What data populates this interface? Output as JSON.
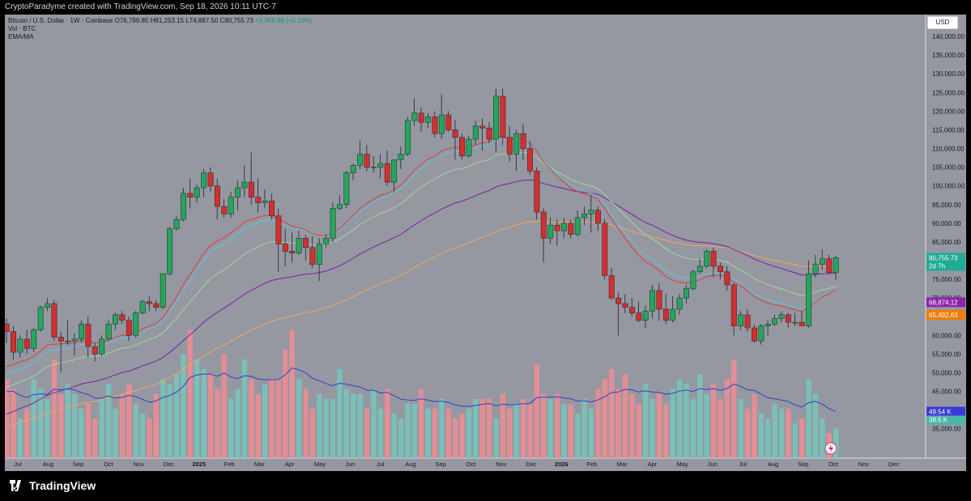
{
  "header": {
    "title": "CryptoParadyme created with TradingView.com, Sep 18, 2026 10:11 UTC-7"
  },
  "legend": {
    "symbol": "Bitcoin / U.S. Dollar · 1W · Coinbase",
    "ohlc": "O76,799.85 H81,253.15 L74,887.50 C80,755.73",
    "change": "+3,955.88 (+5.15%)",
    "vol_label": "Vol · BTC",
    "ema_label": "EMA/MA"
  },
  "currency_button": "USD",
  "brand": "TradingView",
  "icons": {
    "logo": "tradingview-logo-icon",
    "replay": "lightning-replay-icon"
  },
  "colors": {
    "background": "#9598a1",
    "up": "#089981",
    "down": "#f23645",
    "ema_red": "#e53935",
    "ema_cyan": "#5ec5e0",
    "ma_green": "#9ed99e",
    "ma_purple": "#7b1fa2",
    "ma_orange": "#f5a55a",
    "vol_ma_blue": "#2f3ec9",
    "price_label_green": "#22ab94",
    "price_label_purple": "#8e24aa",
    "price_label_orange": "#f57c00",
    "vol_label_blue": "#3a3ad8"
  },
  "price_labels": {
    "last_price": "80,755.73",
    "countdown": "2d 7h",
    "ma_purple": "68,874.12",
    "ma_orange": "65,492.63",
    "vol_ma": "49.54 K",
    "vol": "38.5 K"
  },
  "chart_data": {
    "type": "candlestick",
    "y_axis": {
      "min": 28000,
      "max": 145000,
      "ticks": [
        "140,000.00",
        "135,000.00",
        "130,000.00",
        "125,000.00",
        "120,000.00",
        "115,000.00",
        "110,000.00",
        "105,000.00",
        "100,000.00",
        "95,000.00",
        "90,000.00",
        "85,000.00",
        "80,000.00",
        "75,000.00",
        "70,000.00",
        "65,000.00",
        "60,000.00",
        "55,000.00",
        "50,000.00",
        "45,000.00",
        "40,000.00",
        "35,000.00"
      ],
      "tick_values": [
        140000,
        135000,
        130000,
        125000,
        120000,
        115000,
        110000,
        105000,
        100000,
        95000,
        90000,
        85000,
        80000,
        75000,
        70000,
        65000,
        60000,
        55000,
        50000,
        45000,
        40000,
        35000
      ]
    },
    "x_axis": {
      "labels": [
        "Jul",
        "Aug",
        "Sep",
        "Oct",
        "Nov",
        "Dec",
        "2025",
        "Feb",
        "Mar",
        "Apr",
        "May",
        "Jun",
        "Jul",
        "Aug",
        "Sep",
        "Oct",
        "Nov",
        "Dec",
        "2026",
        "Feb",
        "Mar",
        "Apr",
        "May",
        "Jun",
        "Jul",
        "Aug",
        "Sep",
        "Oct",
        "Nov",
        "Dec"
      ],
      "bold": [
        "2025",
        "2026"
      ]
    },
    "candles": [
      [
        63000,
        64500,
        58000,
        61000
      ],
      [
        61000,
        62500,
        53500,
        55500
      ],
      [
        55500,
        60000,
        54000,
        59000
      ],
      [
        59000,
        61500,
        55000,
        56500
      ],
      [
        56500,
        62000,
        55500,
        61500
      ],
      [
        61500,
        68000,
        61000,
        67500
      ],
      [
        67500,
        70000,
        66500,
        68500
      ],
      [
        68500,
        69500,
        58500,
        59500
      ],
      [
        59500,
        61000,
        50000,
        58500
      ],
      [
        58500,
        64000,
        57500,
        58500
      ],
      [
        58500,
        60500,
        54500,
        59000
      ],
      [
        59000,
        64000,
        58000,
        63000
      ],
      [
        63000,
        65000,
        54000,
        57000
      ],
      [
        57000,
        58000,
        53000,
        55000
      ],
      [
        55000,
        60000,
        54500,
        59000
      ],
      [
        59000,
        64000,
        58500,
        63000
      ],
      [
        63000,
        66000,
        61500,
        65500
      ],
      [
        65500,
        66500,
        63000,
        64000
      ],
      [
        64000,
        65000,
        58500,
        60000
      ],
      [
        60000,
        66500,
        59500,
        66000
      ],
      [
        66000,
        69500,
        65500,
        69000
      ],
      [
        69000,
        70500,
        66500,
        68500
      ],
      [
        68500,
        69500,
        66500,
        67500
      ],
      [
        67500,
        76500,
        67000,
        76500
      ],
      [
        76500,
        89000,
        76000,
        88500
      ],
      [
        88500,
        92000,
        88000,
        91000
      ],
      [
        91000,
        99500,
        90500,
        98000
      ],
      [
        98000,
        102000,
        94000,
        97000
      ],
      [
        97000,
        100500,
        95500,
        99500
      ],
      [
        99500,
        104500,
        97000,
        103500
      ],
      [
        103500,
        105000,
        98500,
        100000
      ],
      [
        100000,
        102000,
        91000,
        94500
      ],
      [
        94500,
        96500,
        91500,
        92500
      ],
      [
        92500,
        98500,
        91500,
        97000
      ],
      [
        97000,
        101500,
        93500,
        99500
      ],
      [
        99500,
        105500,
        97000,
        101000
      ],
      [
        101000,
        109000,
        95000,
        97000
      ],
      [
        97000,
        102000,
        93000,
        95500
      ],
      [
        95500,
        99000,
        94000,
        96000
      ],
      [
        96000,
        98000,
        91000,
        92000
      ],
      [
        92000,
        94000,
        77000,
        84500
      ],
      [
        84500,
        88500,
        78500,
        82500
      ],
      [
        82500,
        87500,
        79500,
        82000
      ],
      [
        82000,
        88000,
        81500,
        86000
      ],
      [
        86000,
        87000,
        80000,
        83500
      ],
      [
        83500,
        86500,
        78000,
        79000
      ],
      [
        79000,
        86000,
        74500,
        84500
      ],
      [
        84500,
        87000,
        83500,
        86000
      ],
      [
        86000,
        95500,
        85000,
        94000
      ],
      [
        94000,
        97500,
        93500,
        95000
      ],
      [
        95000,
        104000,
        94000,
        103500
      ],
      [
        103500,
        106000,
        101500,
        105500
      ],
      [
        105500,
        112000,
        104500,
        108500
      ],
      [
        108500,
        111000,
        104000,
        105000
      ],
      [
        105000,
        108000,
        103500,
        105000
      ],
      [
        105000,
        108500,
        102000,
        106000
      ],
      [
        106000,
        109500,
        100000,
        101000
      ],
      [
        101000,
        107000,
        98500,
        107000
      ],
      [
        107000,
        110500,
        104500,
        108500
      ],
      [
        108500,
        118500,
        108000,
        117500
      ],
      [
        117500,
        123500,
        116000,
        119500
      ],
      [
        119500,
        121000,
        114500,
        117000
      ],
      [
        117000,
        119500,
        115500,
        118500
      ],
      [
        118500,
        120000,
        113000,
        114000
      ],
      [
        114000,
        124500,
        112500,
        119000
      ],
      [
        119000,
        120000,
        114500,
        115000
      ],
      [
        115000,
        117500,
        107000,
        113000
      ],
      [
        113000,
        114000,
        107000,
        108000
      ],
      [
        108000,
        113500,
        107500,
        112500
      ],
      [
        112500,
        117500,
        111000,
        116000
      ],
      [
        116000,
        118000,
        109500,
        115500
      ],
      [
        115500,
        117000,
        111500,
        112500
      ],
      [
        112500,
        126000,
        109000,
        124000
      ],
      [
        124000,
        126000,
        111000,
        113000
      ],
      [
        113000,
        116000,
        106500,
        108500
      ],
      [
        108500,
        115000,
        104000,
        114000
      ],
      [
        114000,
        116500,
        107000,
        110000
      ],
      [
        110000,
        112000,
        103000,
        104000
      ],
      [
        104000,
        105000,
        91000,
        93000
      ],
      [
        93000,
        94000,
        79500,
        86000
      ],
      [
        86000,
        91500,
        84500,
        89500
      ],
      [
        89500,
        91000,
        84000,
        88000
      ],
      [
        88000,
        91500,
        86000,
        90000
      ],
      [
        90000,
        91000,
        86000,
        87000
      ],
      [
        87000,
        93500,
        86500,
        91500
      ],
      [
        91500,
        94500,
        89500,
        92500
      ],
      [
        92500,
        97500,
        87500,
        93500
      ],
      [
        93500,
        94500,
        88000,
        90000
      ],
      [
        90000,
        91000,
        75000,
        76000
      ],
      [
        76000,
        78000,
        69500,
        70000
      ],
      [
        70000,
        71500,
        60000,
        68500
      ],
      [
        68500,
        71000,
        66000,
        67500
      ],
      [
        67500,
        70000,
        65000,
        66000
      ],
      [
        66000,
        69000,
        63500,
        64000
      ],
      [
        64000,
        68000,
        62000,
        66500
      ],
      [
        66500,
        73500,
        64500,
        72000
      ],
      [
        72000,
        74000,
        64000,
        67000
      ],
      [
        67000,
        71000,
        63000,
        64000
      ],
      [
        64000,
        70500,
        63500,
        67000
      ],
      [
        67000,
        71000,
        65500,
        70000
      ],
      [
        70000,
        73500,
        68500,
        72500
      ],
      [
        72500,
        77500,
        72000,
        77000
      ],
      [
        77000,
        80500,
        76500,
        78500
      ],
      [
        78500,
        83000,
        78000,
        82500
      ],
      [
        82500,
        83500,
        75500,
        78500
      ],
      [
        78500,
        79500,
        75000,
        77000
      ],
      [
        77000,
        78500,
        72000,
        73500
      ],
      [
        73500,
        74000,
        60000,
        62500
      ],
      [
        62500,
        66500,
        61500,
        65500
      ],
      [
        65500,
        67000,
        61000,
        62000
      ],
      [
        62000,
        63000,
        58000,
        58500
      ],
      [
        58500,
        63000,
        57500,
        62500
      ],
      [
        62500,
        64000,
        60000,
        63000
      ],
      [
        63000,
        65500,
        62500,
        64500
      ],
      [
        64500,
        66500,
        63500,
        65500
      ],
      [
        65500,
        66000,
        62000,
        63500
      ],
      [
        63500,
        66000,
        62500,
        63500
      ],
      [
        63500,
        66500,
        62500,
        62500
      ],
      [
        62500,
        80000,
        62000,
        76500
      ],
      [
        76500,
        81500,
        75500,
        79000
      ],
      [
        79000,
        83000,
        77500,
        80500
      ],
      [
        80500,
        81500,
        76500,
        76800
      ],
      [
        76800,
        81253,
        74887,
        80755
      ]
    ],
    "volumes": [
      16,
      14,
      8,
      10,
      16,
      14,
      12,
      20,
      13,
      15,
      13,
      10,
      11,
      8,
      12,
      15,
      10,
      13,
      15,
      11,
      9,
      8,
      13,
      16,
      15,
      17,
      21,
      26,
      20,
      18,
      17,
      14,
      21,
      12,
      14,
      20,
      16,
      13,
      15,
      16,
      16,
      22,
      26,
      16,
      14,
      10,
      13,
      12,
      12,
      18,
      14,
      13,
      13,
      10,
      14,
      10,
      14,
      9,
      8,
      11,
      11,
      14,
      10,
      10,
      12,
      10,
      8,
      9,
      10,
      12,
      12,
      12,
      8,
      13,
      10,
      11,
      12,
      11,
      19,
      13,
      12,
      13,
      11,
      11,
      9,
      12,
      10,
      14,
      16,
      18,
      14,
      17,
      13,
      11,
      15,
      12,
      13,
      11,
      14,
      16,
      15,
      12,
      17,
      13,
      15,
      12,
      16,
      20,
      12,
      10,
      13,
      9,
      8,
      11,
      10,
      10,
      7,
      8,
      16,
      13,
      8,
      5,
      6
    ],
    "series": [
      {
        "name": "EMA 20",
        "color": "#5ec5e0"
      },
      {
        "name": "EMA 50",
        "color": "#e53935"
      },
      {
        "name": "MA 100",
        "color": "#9ed99e"
      },
      {
        "name": "MA 200",
        "color": "#7b1fa2"
      },
      {
        "name": "MA 300",
        "color": "#f5a55a"
      },
      {
        "name": "Vol MA",
        "color": "#2f3ec9"
      }
    ]
  }
}
